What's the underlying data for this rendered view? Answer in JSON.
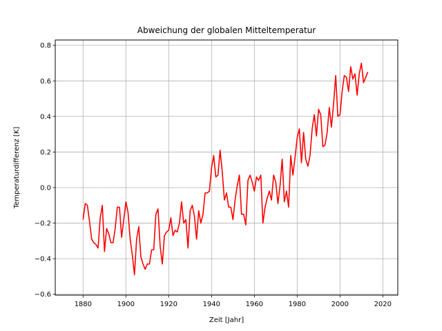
{
  "chart_data": {
    "type": "line",
    "title": "Abweichung der globalen Mitteltemperatur",
    "xlabel": "Zeit [Jahr]",
    "ylabel": "Temperaturdifferenz [K]",
    "xlim": [
      1867,
      2027
    ],
    "ylim": [
      -0.605,
      0.83
    ],
    "xticks": [
      1880,
      1900,
      1920,
      1940,
      1960,
      1980,
      2000,
      2020
    ],
    "yticks": [
      -0.6,
      -0.4,
      -0.2,
      0.0,
      0.2,
      0.4,
      0.6,
      0.8
    ],
    "xtick_labels": [
      "1880",
      "1900",
      "1920",
      "1940",
      "1960",
      "1980",
      "2000",
      "2020"
    ],
    "ytick_labels": [
      "−0.6",
      "−0.4",
      "−0.2",
      "0.0",
      "0.2",
      "0.4",
      "0.6",
      "0.8"
    ],
    "grid": true,
    "line_color": "#ff0000",
    "series": [
      {
        "x": [
          1880,
          1881,
          1882,
          1883,
          1884,
          1885,
          1886,
          1887,
          1888,
          1889,
          1890,
          1891,
          1892,
          1893,
          1894,
          1895,
          1896,
          1897,
          1898,
          1899,
          1900,
          1901,
          1902,
          1903,
          1904,
          1905,
          1906,
          1907,
          1908,
          1909,
          1910,
          1911,
          1912,
          1913,
          1914,
          1915,
          1916,
          1917,
          1918,
          1919,
          1920,
          1921,
          1922,
          1923,
          1924,
          1925,
          1926,
          1927,
          1928,
          1929,
          1930,
          1931,
          1932,
          1933,
          1934,
          1935,
          1936,
          1937,
          1938,
          1939,
          1940,
          1941,
          1942,
          1943,
          1944,
          1945,
          1946,
          1947,
          1948,
          1949,
          1950,
          1951,
          1952,
          1953,
          1954,
          1955,
          1956,
          1957,
          1958,
          1959,
          1960,
          1961,
          1962,
          1963,
          1964,
          1965,
          1966,
          1967,
          1968,
          1969,
          1970,
          1971,
          1972,
          1973,
          1974,
          1975,
          1976,
          1977,
          1978,
          1979,
          1980,
          1981,
          1982,
          1983,
          1984,
          1985,
          1986,
          1987,
          1988,
          1989,
          1990,
          1991,
          1992,
          1993,
          1994,
          1995,
          1996,
          1997,
          1998,
          1999,
          2000,
          2001,
          2002,
          2003,
          2004,
          2005,
          2006,
          2007,
          2008,
          2009,
          2010,
          2011,
          2012,
          2013
        ],
        "values": [
          -0.18,
          -0.09,
          -0.1,
          -0.19,
          -0.29,
          -0.31,
          -0.32,
          -0.34,
          -0.17,
          -0.1,
          -0.36,
          -0.23,
          -0.26,
          -0.31,
          -0.31,
          -0.23,
          -0.11,
          -0.11,
          -0.28,
          -0.18,
          -0.08,
          -0.14,
          -0.29,
          -0.38,
          -0.49,
          -0.29,
          -0.22,
          -0.39,
          -0.43,
          -0.46,
          -0.43,
          -0.43,
          -0.35,
          -0.35,
          -0.15,
          -0.12,
          -0.33,
          -0.43,
          -0.27,
          -0.25,
          -0.24,
          -0.17,
          -0.27,
          -0.24,
          -0.25,
          -0.2,
          -0.08,
          -0.2,
          -0.18,
          -0.34,
          -0.13,
          -0.1,
          -0.16,
          -0.29,
          -0.13,
          -0.2,
          -0.15,
          -0.03,
          -0.03,
          -0.02,
          0.11,
          0.18,
          0.06,
          0.07,
          0.21,
          0.09,
          -0.07,
          -0.03,
          -0.11,
          -0.11,
          -0.18,
          -0.07,
          0.01,
          0.07,
          -0.15,
          -0.15,
          -0.21,
          0.04,
          0.07,
          0.03,
          -0.02,
          0.06,
          0.04,
          0.07,
          -0.2,
          -0.11,
          -0.06,
          -0.02,
          -0.07,
          0.07,
          0.03,
          -0.09,
          0.01,
          0.16,
          -0.08,
          -0.02,
          -0.11,
          0.18,
          0.07,
          0.17,
          0.28,
          0.33,
          0.14,
          0.31,
          0.16,
          0.12,
          0.18,
          0.33,
          0.41,
          0.29,
          0.44,
          0.41,
          0.23,
          0.24,
          0.31,
          0.45,
          0.34,
          0.47,
          0.63,
          0.4,
          0.41,
          0.54,
          0.63,
          0.62,
          0.54,
          0.68,
          0.61,
          0.64,
          0.52,
          0.64,
          0.7,
          0.59,
          0.62,
          0.65
        ]
      }
    ]
  }
}
